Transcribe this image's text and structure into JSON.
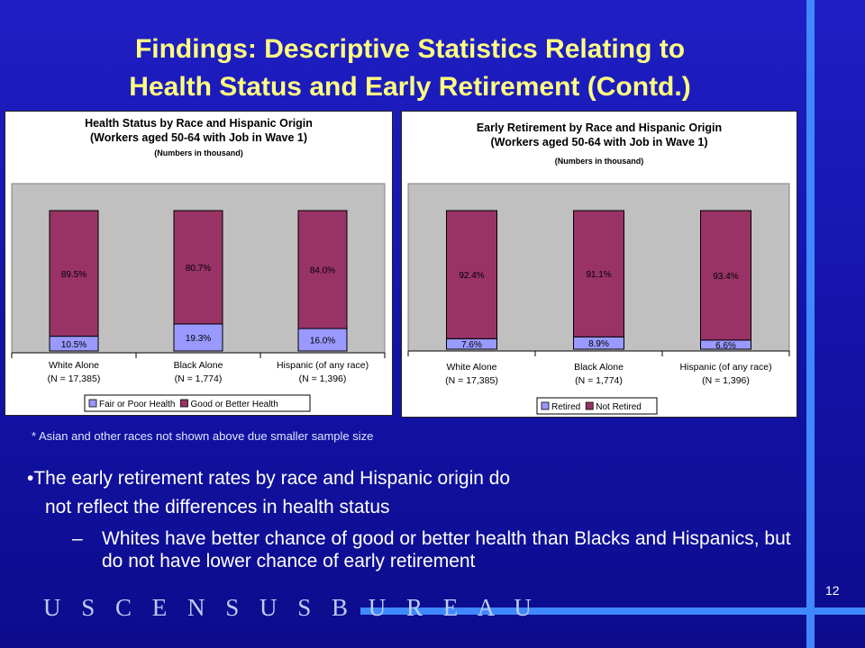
{
  "slide": {
    "title_line1": "Findings: Descriptive Statistics Relating  to",
    "title_line2": "Health Status and Early Retirement (Contd.)",
    "footnote": "* Asian and other races not shown above due smaller sample size",
    "bullet_line1": "•The early retirement rates by race and Hispanic origin do",
    "bullet_line2": "not reflect the differences in health status",
    "sub_dash": "–",
    "sub_text": "Whites have better chance of good or better health than Blacks and Hispanics, but do not have lower chance of early retirement",
    "brand": "U S C E N S U S B U R E A U",
    "page_number": "12",
    "colors": {
      "accent_line": "#3f88ff",
      "title": "#ffff80",
      "background": "#1515ae"
    }
  },
  "chart_data": [
    {
      "type": "bar",
      "stacked": true,
      "percent_stacked": true,
      "title": "Health Status by Race and Hispanic Origin",
      "subtitle": "(Workers aged 50-64 with Job in Wave 1)",
      "note": "(Numbers in thousand)",
      "categories": [
        [
          "White Alone",
          "(N = 17,385)"
        ],
        [
          "Black Alone",
          "(N = 1,774)"
        ],
        [
          "Hispanic (of any race)",
          "(N = 1,396)"
        ]
      ],
      "series": [
        {
          "name": "Fair or Poor Health",
          "values": [
            10.5,
            19.3,
            16.0
          ],
          "labels": [
            "10.5%",
            "19.3%",
            "16.0%"
          ],
          "color": "#9999ff"
        },
        {
          "name": "Good or Better Health",
          "values": [
            89.5,
            80.7,
            84.0
          ],
          "labels": [
            "89.5%",
            "80.7%",
            "84.0%"
          ],
          "color": "#993366"
        }
      ],
      "ylim": [
        0,
        100
      ],
      "plot_background": "#c0c0c0",
      "legend_position": "bottom"
    },
    {
      "type": "bar",
      "stacked": true,
      "percent_stacked": true,
      "title": "Early Retirement by Race and Hispanic Origin",
      "subtitle": "(Workers aged 50-64 with Job in Wave 1)",
      "note": "(Numbers in thousand)",
      "categories": [
        [
          "White Alone",
          "(N = 17,385)"
        ],
        [
          "Black Alone",
          "(N = 1,774)"
        ],
        [
          "Hispanic (of any race)",
          "(N = 1,396)"
        ]
      ],
      "series": [
        {
          "name": "Retired",
          "values": [
            7.6,
            8.9,
            6.6
          ],
          "labels": [
            "7.6%",
            "8.9%",
            "6.6%"
          ],
          "color": "#9999ff"
        },
        {
          "name": "Not Retired",
          "values": [
            92.4,
            91.1,
            93.4
          ],
          "labels": [
            "92.4%",
            "91.1%",
            "93.4%"
          ],
          "color": "#993366"
        }
      ],
      "ylim": [
        0,
        100
      ],
      "plot_background": "#c0c0c0",
      "legend_position": "bottom"
    }
  ]
}
